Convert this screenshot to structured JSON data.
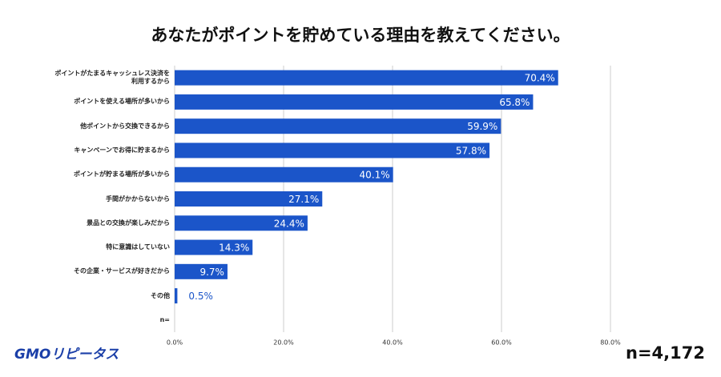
{
  "chart_data": {
    "type": "bar",
    "orientation": "horizontal",
    "title": "あなたがポイントを貯めている理由を教えてください。",
    "categories": [
      "ポイントがたまるキャッシュレス決済を利用するから",
      "ポイントを使える場所が多いから",
      "他ポイントから交換できるから",
      "キャンペーンでお得に貯まるから",
      "ポイントが貯まる場所が多いから",
      "手間がかからないから",
      "景品との交換が楽しみだから",
      "特に意識はしていない",
      "その企業・サービスが好きだから",
      "その他",
      "n="
    ],
    "values": [
      70.4,
      65.8,
      59.9,
      57.8,
      40.1,
      27.1,
      24.4,
      14.3,
      9.7,
      0.5,
      null
    ],
    "value_labels": [
      "70.4%",
      "65.8%",
      "59.9%",
      "57.8%",
      "40.1%",
      "27.1%",
      "24.4%",
      "14.3%",
      "9.7%",
      "0.5%",
      null
    ],
    "color": "#1b55c9",
    "xlim": [
      0,
      80
    ],
    "xticks": [
      {
        "value": 0,
        "label": "0.0%"
      },
      {
        "value": 20,
        "label": "20.0%"
      },
      {
        "value": 40,
        "label": "40.0%"
      },
      {
        "value": 60,
        "label": "60.0%"
      },
      {
        "value": 80,
        "label": "80.0%"
      }
    ],
    "grid": true,
    "logo": "GMOリピータス",
    "sample_size": "n=4,172"
  }
}
